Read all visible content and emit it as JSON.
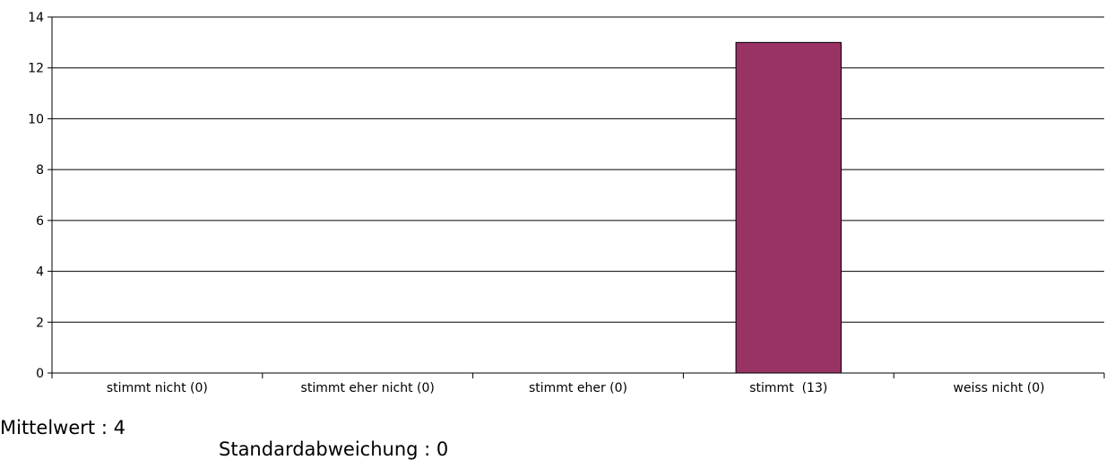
{
  "chart_data": {
    "type": "bar",
    "categories": [
      "stimmt nicht (0)",
      "stimmt eher nicht (0)",
      "stimmt eher (0)",
      "stimmt  (13)",
      "weiss nicht (0)"
    ],
    "values": [
      0,
      0,
      0,
      13,
      0
    ],
    "ylim": [
      0,
      14
    ],
    "yticks": [
      0,
      2,
      4,
      6,
      8,
      10,
      12,
      14
    ],
    "title": "",
    "xlabel": "",
    "ylabel": "",
    "grid": true,
    "bar_color": "#993366"
  },
  "stats": {
    "mean": "Mittelwert : 4",
    "sd": "Standardabweichung : 0"
  }
}
